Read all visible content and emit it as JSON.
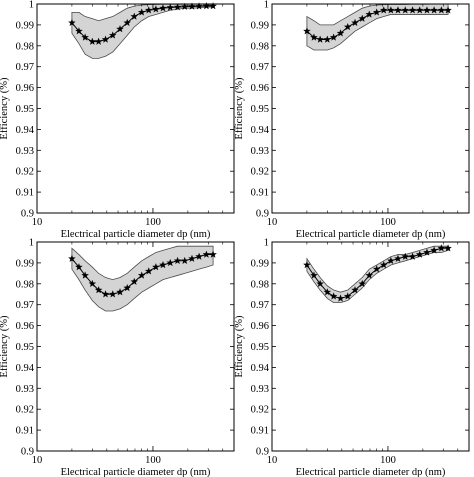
{
  "chart_data": [
    {
      "type": "line",
      "xlabel": "Electrical particle diameter dp (nm)",
      "ylabel": "Efficiency (%)",
      "xscale": "log",
      "xlim": [
        10,
        500
      ],
      "ylim": [
        0.9,
        1
      ],
      "xticks": [
        {
          "value": 10,
          "label": "10"
        },
        {
          "value": 100,
          "label": "100"
        }
      ],
      "yticks": [
        {
          "value": 0.9,
          "label": "0.9"
        },
        {
          "value": 0.91,
          "label": "0.91"
        },
        {
          "value": 0.92,
          "label": "0.92"
        },
        {
          "value": 0.93,
          "label": "0.93"
        },
        {
          "value": 0.94,
          "label": "0.94"
        },
        {
          "value": 0.95,
          "label": "0.95"
        },
        {
          "value": 0.96,
          "label": "0.96"
        },
        {
          "value": 0.97,
          "label": "0.97"
        },
        {
          "value": 0.98,
          "label": "0.98"
        },
        {
          "value": 0.99,
          "label": "0.99"
        },
        {
          "value": 1,
          "label": "1"
        }
      ],
      "grid": false,
      "series": [
        {
          "marker": "star",
          "x": [
            20,
            23,
            26,
            30,
            34,
            39,
            45,
            52,
            60,
            69,
            80,
            92,
            106,
            122,
            141,
            163,
            188,
            217,
            250,
            289,
            330
          ],
          "y": [
            0.991,
            0.987,
            0.984,
            0.982,
            0.982,
            0.983,
            0.985,
            0.988,
            0.991,
            0.994,
            0.996,
            0.997,
            0.9975,
            0.998,
            0.9983,
            0.9985,
            0.9987,
            0.9988,
            0.9989,
            0.999,
            0.999
          ],
          "band_upper": [
            0.996,
            0.996,
            0.994,
            0.993,
            0.992,
            0.993,
            0.994,
            0.996,
            0.998,
            0.999,
            0.9995,
            0.9997,
            0.9998,
            0.9999,
            0.9999,
            0.9999,
            0.9999,
            1.0,
            1.0,
            1.0,
            1.0
          ],
          "band_lower": [
            0.986,
            0.981,
            0.976,
            0.974,
            0.974,
            0.975,
            0.977,
            0.981,
            0.985,
            0.989,
            0.992,
            0.994,
            0.995,
            0.996,
            0.997,
            0.9975,
            0.998,
            0.998,
            0.9982,
            0.9985,
            0.9985
          ]
        }
      ]
    },
    {
      "type": "line",
      "xlabel": "Electrical particle diameter dp (nm)",
      "ylabel": "Efficiency (%)",
      "xscale": "log",
      "xlim": [
        10,
        500
      ],
      "ylim": [
        0.9,
        1
      ],
      "xticks": [
        {
          "value": 10,
          "label": "10"
        },
        {
          "value": 100,
          "label": "100"
        }
      ],
      "yticks": [
        {
          "value": 0.9,
          "label": "0.9"
        },
        {
          "value": 0.91,
          "label": "0.91"
        },
        {
          "value": 0.92,
          "label": "0.92"
        },
        {
          "value": 0.93,
          "label": "0.93"
        },
        {
          "value": 0.94,
          "label": "0.94"
        },
        {
          "value": 0.95,
          "label": "0.95"
        },
        {
          "value": 0.96,
          "label": "0.96"
        },
        {
          "value": 0.97,
          "label": "0.97"
        },
        {
          "value": 0.98,
          "label": "0.98"
        },
        {
          "value": 0.99,
          "label": "0.99"
        },
        {
          "value": 1,
          "label": "1"
        }
      ],
      "grid": false,
      "series": [
        {
          "marker": "star",
          "x": [
            20,
            23,
            26,
            30,
            34,
            39,
            45,
            52,
            60,
            69,
            80,
            92,
            106,
            122,
            141,
            163,
            188,
            217,
            250,
            289,
            330
          ],
          "y": [
            0.987,
            0.984,
            0.983,
            0.983,
            0.984,
            0.986,
            0.989,
            0.991,
            0.993,
            0.995,
            0.996,
            0.997,
            0.997,
            0.997,
            0.997,
            0.997,
            0.997,
            0.997,
            0.997,
            0.997,
            0.997
          ],
          "band_upper": [
            0.994,
            0.992,
            0.99,
            0.99,
            0.99,
            0.992,
            0.994,
            0.996,
            0.998,
            0.999,
            0.9995,
            0.9997,
            0.9998,
            0.9998,
            0.9998,
            0.9999,
            0.9999,
            0.9999,
            1.0,
            1.0,
            1.0
          ],
          "band_lower": [
            0.98,
            0.978,
            0.978,
            0.978,
            0.979,
            0.981,
            0.984,
            0.987,
            0.989,
            0.991,
            0.993,
            0.994,
            0.995,
            0.995,
            0.995,
            0.995,
            0.995,
            0.995,
            0.995,
            0.995,
            0.995
          ]
        }
      ]
    },
    {
      "type": "line",
      "xlabel": "Electrical particle diameter dp (nm)",
      "ylabel": "Efficiency (%)",
      "xscale": "log",
      "xlim": [
        10,
        500
      ],
      "ylim": [
        0.9,
        1
      ],
      "xticks": [
        {
          "value": 10,
          "label": "10"
        },
        {
          "value": 100,
          "label": "100"
        }
      ],
      "yticks": [
        {
          "value": 0.9,
          "label": "0.9"
        },
        {
          "value": 0.91,
          "label": "0.91"
        },
        {
          "value": 0.92,
          "label": "0.92"
        },
        {
          "value": 0.93,
          "label": "0.93"
        },
        {
          "value": 0.94,
          "label": "0.94"
        },
        {
          "value": 0.95,
          "label": "0.95"
        },
        {
          "value": 0.96,
          "label": "0.96"
        },
        {
          "value": 0.97,
          "label": "0.97"
        },
        {
          "value": 0.98,
          "label": "0.98"
        },
        {
          "value": 0.99,
          "label": "0.99"
        },
        {
          "value": 1,
          "label": "1"
        }
      ],
      "grid": false,
      "series": [
        {
          "marker": "star",
          "x": [
            20,
            23,
            26,
            30,
            34,
            39,
            45,
            52,
            60,
            69,
            80,
            92,
            106,
            122,
            141,
            163,
            188,
            217,
            250,
            289,
            330
          ],
          "y": [
            0.992,
            0.988,
            0.984,
            0.98,
            0.977,
            0.975,
            0.975,
            0.976,
            0.978,
            0.981,
            0.984,
            0.986,
            0.988,
            0.989,
            0.99,
            0.991,
            0.991,
            0.992,
            0.993,
            0.994,
            0.994
          ],
          "band_upper": [
            0.997,
            0.994,
            0.991,
            0.988,
            0.985,
            0.983,
            0.982,
            0.983,
            0.985,
            0.988,
            0.991,
            0.993,
            0.995,
            0.996,
            0.997,
            0.998,
            0.998,
            0.998,
            0.998,
            0.998,
            0.998
          ],
          "band_lower": [
            0.987,
            0.982,
            0.977,
            0.972,
            0.969,
            0.967,
            0.967,
            0.968,
            0.97,
            0.973,
            0.976,
            0.978,
            0.98,
            0.982,
            0.983,
            0.984,
            0.985,
            0.986,
            0.987,
            0.988,
            0.989
          ]
        }
      ]
    },
    {
      "type": "line",
      "xlabel": "Electrical particle diameter dp (nm)",
      "ylabel": "Efficiency (%)",
      "xscale": "log",
      "xlim": [
        10,
        500
      ],
      "ylim": [
        0.9,
        1
      ],
      "xticks": [
        {
          "value": 10,
          "label": "10"
        },
        {
          "value": 100,
          "label": "100"
        }
      ],
      "yticks": [
        {
          "value": 0.9,
          "label": "0.9"
        },
        {
          "value": 0.91,
          "label": "0.91"
        },
        {
          "value": 0.92,
          "label": "0.92"
        },
        {
          "value": 0.93,
          "label": "0.93"
        },
        {
          "value": 0.94,
          "label": "0.94"
        },
        {
          "value": 0.95,
          "label": "0.95"
        },
        {
          "value": 0.96,
          "label": "0.96"
        },
        {
          "value": 0.97,
          "label": "0.97"
        },
        {
          "value": 0.98,
          "label": "0.98"
        },
        {
          "value": 0.99,
          "label": "0.99"
        },
        {
          "value": 1,
          "label": "1"
        }
      ],
      "grid": false,
      "series": [
        {
          "marker": "star",
          "x": [
            20,
            23,
            26,
            30,
            34,
            39,
            45,
            52,
            60,
            69,
            80,
            92,
            106,
            122,
            141,
            163,
            188,
            217,
            250,
            289,
            330
          ],
          "y": [
            0.989,
            0.984,
            0.98,
            0.976,
            0.974,
            0.973,
            0.974,
            0.977,
            0.98,
            0.984,
            0.987,
            0.989,
            0.991,
            0.992,
            0.993,
            0.993,
            0.994,
            0.995,
            0.996,
            0.997,
            0.997
          ],
          "band_upper": [
            0.992,
            0.987,
            0.983,
            0.979,
            0.977,
            0.976,
            0.977,
            0.98,
            0.983,
            0.987,
            0.989,
            0.991,
            0.993,
            0.994,
            0.994,
            0.995,
            0.996,
            0.997,
            0.998,
            0.998,
            0.998
          ],
          "band_lower": [
            0.986,
            0.981,
            0.977,
            0.973,
            0.971,
            0.971,
            0.972,
            0.975,
            0.978,
            0.982,
            0.985,
            0.987,
            0.989,
            0.99,
            0.991,
            0.992,
            0.993,
            0.994,
            0.995,
            0.995,
            0.996
          ]
        }
      ]
    }
  ]
}
